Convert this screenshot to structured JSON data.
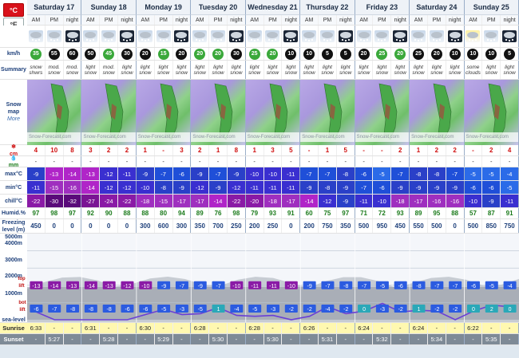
{
  "units": {
    "celsius": "°C",
    "fahrenheit": "°F"
  },
  "days": [
    {
      "name": "Saturday 17"
    },
    {
      "name": "Sunday 18"
    },
    {
      "name": "Monday 19"
    },
    {
      "name": "Tuesday 20"
    },
    {
      "name": "Wednesday 21"
    },
    {
      "name": "Thursday 22"
    },
    {
      "name": "Friday 23"
    },
    {
      "name": "Saturday 24"
    },
    {
      "name": "Sunday 25"
    }
  ],
  "periods": [
    "AM",
    "PM",
    "night"
  ],
  "labels": {
    "kmh": "km/h",
    "summary": "Summary",
    "snow_map": "Snow map",
    "more": "More",
    "snow_cm": "cm",
    "rain_mm": "mm",
    "max": "max°C",
    "min": "min°C",
    "chill": "chill°C",
    "humid": "Humid.%",
    "freezing": "Freezing level (m)",
    "alt_5000": "5000m",
    "alt_4000": "4000m",
    "alt_3000": "3000m",
    "alt_2000": "2000m",
    "alt_1000": "1000m",
    "top_lift": "top lift",
    "bot_lift": "bot lift",
    "sea_level": "sea-level",
    "sunrise": "Sunrise",
    "sunset": "Sunset",
    "watermark": "Snow-Forecast.com"
  },
  "wind": [
    "35",
    "55",
    "60",
    "50",
    "45",
    "30",
    "20",
    "15",
    "20",
    "20",
    "20",
    "30",
    "25",
    "20",
    "10",
    "10",
    "5",
    "5",
    "20",
    "25",
    "20",
    "25",
    "20",
    "10",
    "10",
    "10",
    "5"
  ],
  "wind_green_idx": [
    0,
    4,
    7,
    9,
    10,
    12,
    13,
    19,
    20
  ],
  "summary": [
    "snow shwrs",
    "mod. snow",
    "mod. snow",
    "light snow",
    "mod. snow",
    "light snow",
    "light snow",
    "light snow",
    "light snow",
    "light snow",
    "light snow",
    "light snow",
    "light snow",
    "light snow",
    "light snow",
    "light snow",
    "light snow",
    "light snow",
    "light snow",
    "light snow",
    "light snow",
    "light snow",
    "light snow",
    "light snow",
    "some clouds",
    "light snow",
    "light snow"
  ],
  "snow_cm": [
    "4",
    "10",
    "8",
    "3",
    "2",
    "2",
    "1",
    "-",
    "3",
    "2",
    "1",
    "8",
    "1",
    "3",
    "5",
    "-",
    "1",
    "5",
    "-",
    "-",
    "2",
    "1",
    "2",
    "2",
    "-",
    "2",
    "4"
  ],
  "rain_mm": [
    "-",
    "-",
    "-",
    "-",
    "-",
    "-",
    "-",
    "-",
    "-",
    "-",
    "-",
    "-",
    "-",
    "-",
    "-",
    "-",
    "-",
    "-",
    "-",
    "-",
    "-",
    "-",
    "-",
    "-",
    "-",
    "-",
    "-"
  ],
  "max": [
    "-9",
    "-13",
    "-14",
    "-13",
    "-12",
    "-11",
    "-9",
    "-7",
    "-6",
    "-9",
    "-7",
    "-9",
    "-10",
    "-10",
    "-11",
    "-7",
    "-7",
    "-8",
    "-6",
    "-5",
    "-7",
    "-8",
    "-8",
    "-7",
    "-5",
    "-5",
    "-4"
  ],
  "min": [
    "-11",
    "-15",
    "-16",
    "-14",
    "-12",
    "-12",
    "-10",
    "-8",
    "-9",
    "-12",
    "-9",
    "-12",
    "-11",
    "-11",
    "-11",
    "-9",
    "-8",
    "-9",
    "-7",
    "-6",
    "-9",
    "-9",
    "-9",
    "-9",
    "-6",
    "-6",
    "-5"
  ],
  "chill": [
    "-22",
    "-30",
    "-32",
    "-27",
    "-24",
    "-22",
    "-18",
    "-15",
    "-17",
    "-17",
    "-14",
    "-22",
    "-20",
    "-18",
    "-17",
    "-14",
    "-12",
    "-9",
    "-11",
    "-10",
    "-18",
    "-17",
    "-16",
    "-16",
    "-10",
    "-9",
    "-11"
  ],
  "humid": [
    "97",
    "98",
    "97",
    "92",
    "90",
    "88",
    "88",
    "80",
    "94",
    "89",
    "76",
    "98",
    "79",
    "93",
    "91",
    "60",
    "75",
    "97",
    "71",
    "72",
    "93",
    "89",
    "95",
    "88",
    "57",
    "87",
    "91"
  ],
  "freezing": [
    "450",
    "0",
    "0",
    "0",
    "0",
    "0",
    "300",
    "600",
    "300",
    "350",
    "700",
    "250",
    "200",
    "250",
    "0",
    "200",
    "750",
    "350",
    "500",
    "950",
    "450",
    "550",
    "500",
    "0",
    "500",
    "850",
    "750"
  ],
  "lift_top": [
    "-13",
    "-14",
    "-13",
    "-14",
    "-13",
    "-12",
    "-10",
    "-9",
    "-7",
    "-9",
    "-7",
    "-10",
    "-11",
    "-11",
    "-10",
    "-9",
    "-7",
    "-8",
    "-7",
    "-5",
    "-6",
    "-8",
    "-7",
    "-7",
    "-6",
    "-5",
    "-4"
  ],
  "lift_bot": [
    "-6",
    "-7",
    "-8",
    "-8",
    "-8",
    "-6",
    "-6",
    "-5",
    "-3",
    "-5",
    "1",
    "-4",
    "-5",
    "-3",
    "-2",
    "-2",
    "-4",
    "-2",
    "0",
    "-3",
    "-2",
    "1",
    "-2",
    "-2",
    "0",
    "2",
    "0"
  ],
  "sunrise": [
    "6:33",
    "-",
    "-",
    "6:31",
    "-",
    "-",
    "6:30",
    "-",
    "-",
    "6:28",
    "-",
    "-",
    "6:28",
    "-",
    "-",
    "6:26",
    "-",
    "-",
    "6:24",
    "-",
    "-",
    "6:24",
    "-",
    "-",
    "6:22",
    "-",
    "-"
  ],
  "sunset": [
    "-",
    "5:27",
    "-",
    "-",
    "5:28",
    "-",
    "-",
    "5:29",
    "-",
    "-",
    "5:30",
    "-",
    "-",
    "5:30",
    "-",
    "-",
    "5:31",
    "-",
    "-",
    "5:32",
    "-",
    "-",
    "5:34",
    "-",
    "-",
    "5:35",
    "-"
  ],
  "colors": {
    "snow_red": "#d01010",
    "humid_green": "#1a7a1a",
    "freezing_line": "#6a3fd6",
    "sunrise_bg": "#fff8b0"
  }
}
